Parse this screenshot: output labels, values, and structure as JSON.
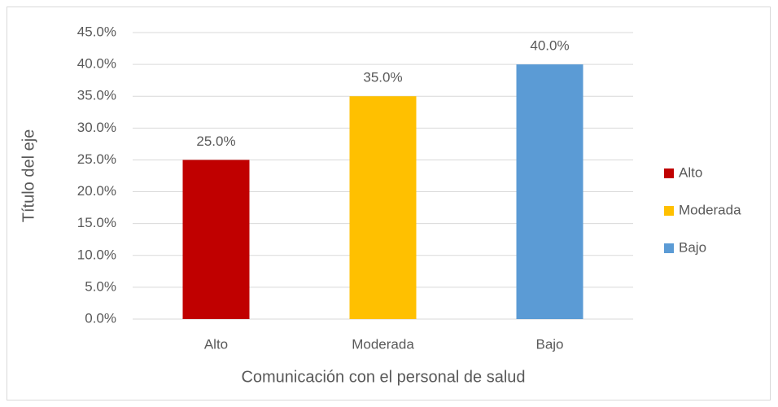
{
  "chart_data": {
    "type": "bar",
    "x_label": "Comunicación con el personal de salud",
    "y_label": "Título del eje",
    "categories": [
      "Alto",
      "Moderada",
      "Bajo"
    ],
    "values": [
      25,
      35,
      40
    ],
    "value_labels": [
      "25.0%",
      "35.0%",
      "40.0%"
    ],
    "colors": [
      "#c00000",
      "#ffc000",
      "#5b9bd5"
    ],
    "ylim": [
      0,
      45
    ],
    "yticks": [
      {
        "value": 0,
        "label": "0.0%"
      },
      {
        "value": 5,
        "label": "5.0%"
      },
      {
        "value": 10,
        "label": "10.0%"
      },
      {
        "value": 15,
        "label": "15.0%"
      },
      {
        "value": 20,
        "label": "20.0%"
      },
      {
        "value": 25,
        "label": "25.0%"
      },
      {
        "value": 30,
        "label": "30.0%"
      },
      {
        "value": 35,
        "label": "35.0%"
      },
      {
        "value": 40,
        "label": "40.0%"
      },
      {
        "value": 45,
        "label": "45.0%"
      }
    ],
    "grid": true,
    "legend": "right"
  }
}
